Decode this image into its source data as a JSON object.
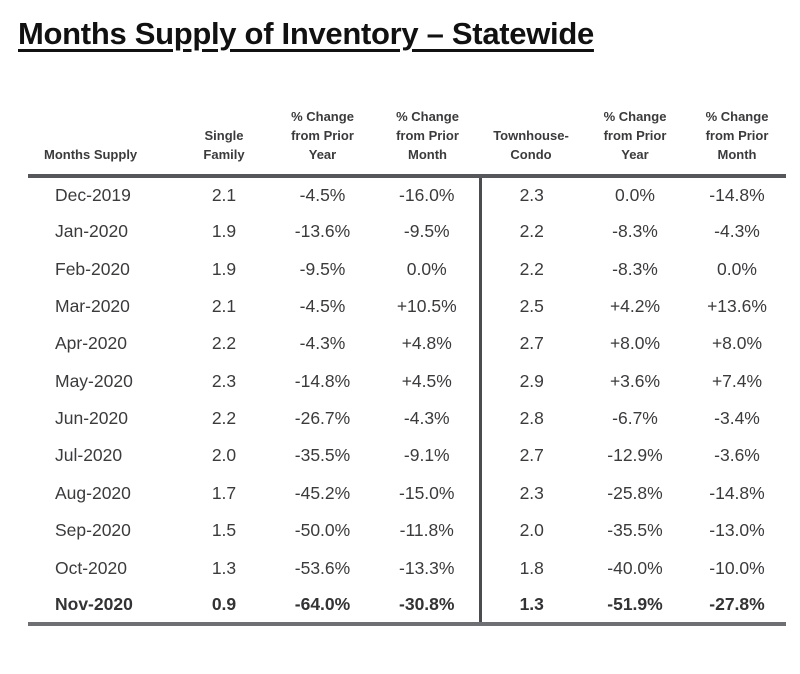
{
  "page": {
    "title": "Months Supply of Inventory – Statewide"
  },
  "colors": {
    "background": "#ffffff",
    "title_text": "#111111",
    "body_text": "#3b3b3d",
    "header_rule": "#56575b",
    "section_divider": "#4b4c50",
    "bottom_rule": "#6e6f72"
  },
  "table": {
    "headers": [
      "Months Supply",
      "Single\nFamily",
      "% Change\nfrom Prior\nYear",
      "% Change\nfrom Prior\nMonth",
      "Townhouse-\nCondo",
      "% Change\nfrom Prior\nYear",
      "% Change\nfrom Prior\nMonth"
    ],
    "rows": [
      {
        "bold": false,
        "cells": [
          "Dec-2019",
          "2.1",
          "-4.5%",
          "-16.0%",
          "2.3",
          "0.0%",
          "-14.8%"
        ]
      },
      {
        "bold": false,
        "cells": [
          "Jan-2020",
          "1.9",
          "-13.6%",
          "-9.5%",
          "2.2",
          "-8.3%",
          "-4.3%"
        ]
      },
      {
        "bold": false,
        "cells": [
          "Feb-2020",
          "1.9",
          "-9.5%",
          "0.0%",
          "2.2",
          "-8.3%",
          "0.0%"
        ]
      },
      {
        "bold": false,
        "cells": [
          "Mar-2020",
          "2.1",
          "-4.5%",
          "+10.5%",
          "2.5",
          "+4.2%",
          "+13.6%"
        ]
      },
      {
        "bold": false,
        "cells": [
          "Apr-2020",
          "2.2",
          "-4.3%",
          "+4.8%",
          "2.7",
          "+8.0%",
          "+8.0%"
        ]
      },
      {
        "bold": false,
        "cells": [
          "May-2020",
          "2.3",
          "-14.8%",
          "+4.5%",
          "2.9",
          "+3.6%",
          "+7.4%"
        ]
      },
      {
        "bold": false,
        "cells": [
          "Jun-2020",
          "2.2",
          "-26.7%",
          "-4.3%",
          "2.8",
          "-6.7%",
          "-3.4%"
        ]
      },
      {
        "bold": false,
        "cells": [
          "Jul-2020",
          "2.0",
          "-35.5%",
          "-9.1%",
          "2.7",
          "-12.9%",
          "-3.6%"
        ]
      },
      {
        "bold": false,
        "cells": [
          "Aug-2020",
          "1.7",
          "-45.2%",
          "-15.0%",
          "2.3",
          "-25.8%",
          "-14.8%"
        ]
      },
      {
        "bold": false,
        "cells": [
          "Sep-2020",
          "1.5",
          "-50.0%",
          "-11.8%",
          "2.0",
          "-35.5%",
          "-13.0%"
        ]
      },
      {
        "bold": false,
        "cells": [
          "Oct-2020",
          "1.3",
          "-53.6%",
          "-13.3%",
          "1.8",
          "-40.0%",
          "-10.0%"
        ]
      },
      {
        "bold": true,
        "cells": [
          "Nov-2020",
          "0.9",
          "-64.0%",
          "-30.8%",
          "1.3",
          "-51.9%",
          "-27.8%"
        ]
      }
    ]
  },
  "chart_data": {
    "type": "table",
    "title": "Months Supply of Inventory – Statewide",
    "columns": [
      "Months Supply",
      "Single Family",
      "Single Family % Change from Prior Year",
      "Single Family % Change from Prior Month",
      "Townhouse-Condo",
      "Townhouse-Condo % Change from Prior Year",
      "Townhouse-Condo % Change from Prior Month"
    ],
    "categories": [
      "Dec-2019",
      "Jan-2020",
      "Feb-2020",
      "Mar-2020",
      "Apr-2020",
      "May-2020",
      "Jun-2020",
      "Jul-2020",
      "Aug-2020",
      "Sep-2020",
      "Oct-2020",
      "Nov-2020"
    ],
    "series": [
      {
        "name": "Single Family Months Supply",
        "values": [
          2.1,
          1.9,
          1.9,
          2.1,
          2.2,
          2.3,
          2.2,
          2.0,
          1.7,
          1.5,
          1.3,
          0.9
        ]
      },
      {
        "name": "Single Family % Change from Prior Year",
        "values": [
          -4.5,
          -13.6,
          -9.5,
          -4.5,
          -4.3,
          -14.8,
          -26.7,
          -35.5,
          -45.2,
          -50.0,
          -53.6,
          -64.0
        ]
      },
      {
        "name": "Single Family % Change from Prior Month",
        "values": [
          -16.0,
          -9.5,
          0.0,
          10.5,
          4.8,
          4.5,
          -4.3,
          -9.1,
          -15.0,
          -11.8,
          -13.3,
          -30.8
        ]
      },
      {
        "name": "Townhouse-Condo Months Supply",
        "values": [
          2.3,
          2.2,
          2.2,
          2.5,
          2.7,
          2.9,
          2.8,
          2.7,
          2.3,
          2.0,
          1.8,
          1.3
        ]
      },
      {
        "name": "Townhouse-Condo % Change from Prior Year",
        "values": [
          0.0,
          -8.3,
          -8.3,
          4.2,
          8.0,
          3.6,
          -6.7,
          -12.9,
          -25.8,
          -35.5,
          -40.0,
          -51.9
        ]
      },
      {
        "name": "Townhouse-Condo % Change from Prior Month",
        "values": [
          -14.8,
          -4.3,
          0.0,
          13.6,
          8.0,
          7.4,
          -3.4,
          -3.6,
          -14.8,
          -13.0,
          -10.0,
          -27.8
        ]
      }
    ]
  }
}
